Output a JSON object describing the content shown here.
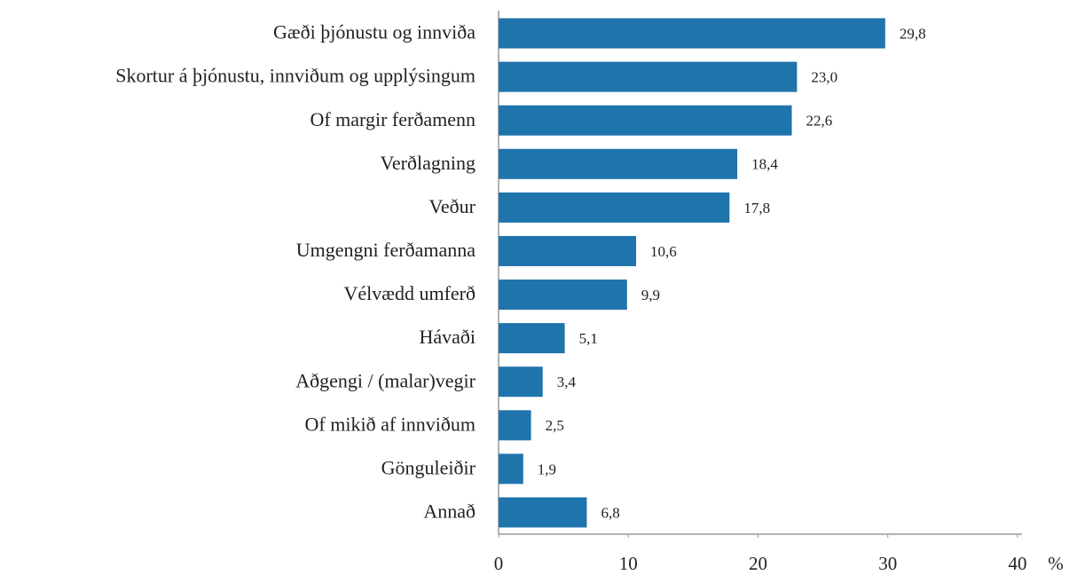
{
  "chart_data": {
    "type": "barh",
    "categories": [
      "Gæði þjónustu og innviða",
      "Skortur á þjónustu, innviðum og upplýsingum",
      "Of margir ferðamenn",
      "Verðlagning",
      "Veður",
      "Umgengni ferðamanna",
      "Vélvædd umferð",
      "Hávaði",
      "Aðgengi / (malar)vegir",
      "Of mikið af innviðum",
      "Gönguleiðir",
      "Annað"
    ],
    "values": [
      29.8,
      23.0,
      22.6,
      18.4,
      17.8,
      10.6,
      9.9,
      5.1,
      3.4,
      2.5,
      1.9,
      6.8
    ],
    "value_labels": [
      "29,8",
      "23,0",
      "22,6",
      "18,4",
      "17,8",
      "10,6",
      "9,9",
      "5,1",
      "3,4",
      "2,5",
      "1,9",
      "6,8"
    ],
    "color": "#1f74ab",
    "x_label": "%",
    "xlim": [
      0,
      40
    ],
    "xticks": [
      0,
      10,
      20,
      30,
      40
    ]
  }
}
